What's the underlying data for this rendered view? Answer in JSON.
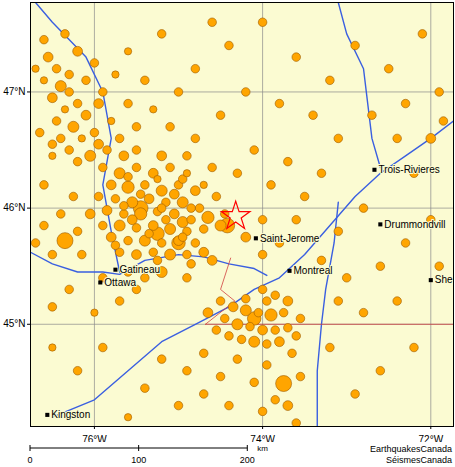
{
  "chart_data": {
    "type": "map",
    "xlim": [
      -76.76,
      -71.73
    ],
    "ylim": [
      44.12,
      47.77
    ],
    "xticks": [
      {
        "value": -76,
        "label": "76°W"
      },
      {
        "value": -74,
        "label": "74°W"
      },
      {
        "value": -72,
        "label": "72°W"
      }
    ],
    "yticks": [
      {
        "value": 45,
        "label": "45°N"
      },
      {
        "value": 46,
        "label": "46°N"
      },
      {
        "value": 47,
        "label": "47°N"
      }
    ],
    "grid": true,
    "color": "#ffa500",
    "events": [
      [
        -76.6,
        47.45,
        2
      ],
      [
        -76.55,
        47.3,
        2.5
      ],
      [
        -76.45,
        47.2,
        2
      ],
      [
        -76.6,
        47.1,
        1.5
      ],
      [
        -76.4,
        47.05,
        3
      ],
      [
        -76.3,
        47.0,
        2
      ],
      [
        -76.5,
        46.95,
        2.5
      ],
      [
        -76.2,
        46.9,
        2
      ],
      [
        -76.35,
        46.85,
        1.5
      ],
      [
        -76.1,
        46.8,
        2.5
      ],
      [
        -76.45,
        46.75,
        2
      ],
      [
        -76.25,
        46.7,
        3
      ],
      [
        -76.0,
        46.65,
        2
      ],
      [
        -76.15,
        46.6,
        1.5
      ],
      [
        -76.4,
        46.6,
        2
      ],
      [
        -75.95,
        46.55,
        2.5
      ],
      [
        -76.3,
        46.5,
        2
      ],
      [
        -76.05,
        46.45,
        3
      ],
      [
        -75.85,
        46.5,
        2
      ],
      [
        -76.5,
        46.45,
        1.5
      ],
      [
        -76.2,
        46.4,
        2
      ],
      [
        -75.7,
        46.6,
        2
      ],
      [
        -75.8,
        46.75,
        1.5
      ],
      [
        -75.6,
        46.9,
        2
      ],
      [
        -75.9,
        47.0,
        2
      ],
      [
        -75.75,
        47.15,
        1.5
      ],
      [
        -76.0,
        47.25,
        2
      ],
      [
        -76.2,
        47.35,
        2.5
      ],
      [
        -76.35,
        47.5,
        2
      ],
      [
        -75.6,
        47.35,
        1.5
      ],
      [
        -75.4,
        47.1,
        2
      ],
      [
        -75.3,
        46.85,
        1.5
      ],
      [
        -75.5,
        46.7,
        2
      ],
      [
        -76.65,
        46.65,
        2
      ],
      [
        -76.7,
        47.2,
        1.5
      ],
      [
        -76.1,
        47.1,
        2
      ],
      [
        -75.95,
        46.9,
        2.5
      ],
      [
        -76.3,
        47.15,
        2
      ],
      [
        -76.5,
        46.55,
        2
      ],
      [
        -75.65,
        46.45,
        2.5
      ],
      [
        -75.9,
        46.35,
        2
      ],
      [
        -75.7,
        46.3,
        3
      ],
      [
        -75.5,
        46.35,
        2
      ],
      [
        -75.3,
        46.3,
        2.5
      ],
      [
        -75.1,
        46.35,
        2
      ],
      [
        -74.9,
        46.3,
        1.5
      ],
      [
        -75.8,
        46.2,
        2.5
      ],
      [
        -75.6,
        46.18,
        3.5
      ],
      [
        -75.4,
        46.2,
        2
      ],
      [
        -75.2,
        46.15,
        3
      ],
      [
        -75.0,
        46.2,
        2
      ],
      [
        -74.8,
        46.15,
        2.5
      ],
      [
        -75.95,
        46.1,
        2
      ],
      [
        -75.75,
        46.08,
        2
      ],
      [
        -75.55,
        46.05,
        3
      ],
      [
        -75.35,
        46.08,
        2.5
      ],
      [
        -75.15,
        46.05,
        2
      ],
      [
        -74.95,
        46.05,
        3
      ],
      [
        -74.75,
        46.0,
        2
      ],
      [
        -75.85,
        45.98,
        2.5
      ],
      [
        -75.65,
        45.95,
        2
      ],
      [
        -75.45,
        45.95,
        3.5
      ],
      [
        -75.25,
        45.97,
        2
      ],
      [
        -75.05,
        45.95,
        2.5
      ],
      [
        -74.85,
        45.9,
        2
      ],
      [
        -74.65,
        45.92,
        3.5
      ],
      [
        -75.9,
        45.85,
        2
      ],
      [
        -75.7,
        45.85,
        3
      ],
      [
        -75.5,
        45.83,
        2
      ],
      [
        -75.3,
        45.85,
        2.5
      ],
      [
        -75.1,
        45.82,
        3
      ],
      [
        -74.9,
        45.8,
        2
      ],
      [
        -74.7,
        45.82,
        2
      ],
      [
        -75.8,
        45.75,
        2.5
      ],
      [
        -75.6,
        45.72,
        2
      ],
      [
        -75.4,
        45.72,
        3
      ],
      [
        -75.2,
        45.7,
        2
      ],
      [
        -75.0,
        45.72,
        2.5
      ],
      [
        -74.8,
        45.7,
        2
      ],
      [
        -75.7,
        45.62,
        2
      ],
      [
        -75.5,
        45.6,
        2.5
      ],
      [
        -75.3,
        45.62,
        2
      ],
      [
        -75.1,
        45.6,
        3
      ],
      [
        -74.9,
        45.6,
        2
      ],
      [
        -74.7,
        45.62,
        2.5
      ],
      [
        -75.6,
        46.27,
        2
      ],
      [
        -75.25,
        46.25,
        1.5
      ],
      [
        -74.95,
        46.25,
        2
      ],
      [
        -75.45,
        46.12,
        2
      ],
      [
        -75.05,
        46.12,
        2.5
      ],
      [
        -75.65,
        46.02,
        2
      ],
      [
        -75.2,
        46.0,
        2
      ],
      [
        -74.85,
        46.0,
        2
      ],
      [
        -75.55,
        45.9,
        2.5
      ],
      [
        -75.15,
        45.9,
        2
      ],
      [
        -74.95,
        45.88,
        3
      ],
      [
        -75.35,
        45.78,
        2
      ],
      [
        -74.95,
        45.75,
        2
      ],
      [
        -75.75,
        45.68,
        2
      ],
      [
        -75.25,
        45.55,
        2
      ],
      [
        -74.85,
        45.52,
        2
      ],
      [
        -74.6,
        45.55,
        2.5
      ],
      [
        -74.5,
        45.85,
        3
      ],
      [
        -74.45,
        45.95,
        2
      ],
      [
        -74.55,
        46.1,
        2
      ],
      [
        -74.7,
        46.2,
        1.5
      ],
      [
        -74.6,
        46.35,
        2
      ],
      [
        -74.9,
        46.45,
        2
      ],
      [
        -75.2,
        46.45,
        2.5
      ],
      [
        -75.5,
        46.5,
        2
      ],
      [
        -75.45,
        46.0,
        4.5
      ],
      [
        -75.0,
        45.7,
        4
      ],
      [
        -74.42,
        45.85,
        4.5
      ],
      [
        -75.25,
        45.78,
        4
      ],
      [
        -76.35,
        45.72,
        5
      ],
      [
        -76.6,
        45.85,
        2
      ],
      [
        -76.5,
        45.6,
        2
      ],
      [
        -76.2,
        45.8,
        2
      ],
      [
        -76.7,
        45.7,
        2
      ],
      [
        -76.4,
        45.95,
        2
      ],
      [
        -76.15,
        45.6,
        2
      ],
      [
        -76.05,
        45.95,
        2.5
      ],
      [
        -76.25,
        46.1,
        2
      ],
      [
        -76.6,
        46.2,
        2
      ],
      [
        -75.9,
        45.4,
        2
      ],
      [
        -75.6,
        45.45,
        2
      ],
      [
        -75.4,
        45.4,
        2
      ],
      [
        -75.2,
        45.45,
        3
      ],
      [
        -74.9,
        45.4,
        2
      ],
      [
        -75.5,
        45.3,
        2
      ],
      [
        -75.7,
        45.2,
        2
      ],
      [
        -76.0,
        45.1,
        1.5
      ],
      [
        -76.3,
        45.3,
        2
      ],
      [
        -76.5,
        45.15,
        2
      ],
      [
        -74.5,
        45.2,
        2
      ],
      [
        -74.35,
        45.15,
        2.5
      ],
      [
        -74.2,
        45.12,
        3
      ],
      [
        -74.05,
        45.1,
        2
      ],
      [
        -73.9,
        45.08,
        3.5
      ],
      [
        -73.75,
        45.1,
        2
      ],
      [
        -74.45,
        45.05,
        2
      ],
      [
        -74.3,
        45.0,
        3
      ],
      [
        -74.15,
        44.98,
        2
      ],
      [
        -74.0,
        44.95,
        2.5
      ],
      [
        -73.85,
        44.95,
        2
      ],
      [
        -73.7,
        44.97,
        2
      ],
      [
        -74.4,
        44.9,
        2
      ],
      [
        -74.25,
        44.87,
        2
      ],
      [
        -74.1,
        44.85,
        3
      ],
      [
        -73.95,
        44.83,
        2
      ],
      [
        -73.8,
        44.85,
        2.5
      ],
      [
        -73.6,
        44.9,
        2
      ],
      [
        -74.2,
        45.22,
        2
      ],
      [
        -73.95,
        45.2,
        2
      ],
      [
        -73.7,
        45.2,
        2.5
      ],
      [
        -74.55,
        44.95,
        2
      ],
      [
        -74.0,
        45.3,
        2
      ],
      [
        -73.85,
        45.25,
        2
      ],
      [
        -73.55,
        45.05,
        2
      ],
      [
        -74.65,
        45.1,
        2.5
      ],
      [
        -74.1,
        45.05,
        4
      ],
      [
        -73.65,
        44.75,
        2
      ],
      [
        -75.2,
        44.7,
        2
      ],
      [
        -74.9,
        44.6,
        2
      ],
      [
        -74.7,
        44.75,
        2
      ],
      [
        -74.5,
        44.55,
        2
      ],
      [
        -74.3,
        44.7,
        2
      ],
      [
        -74.1,
        44.5,
        2
      ],
      [
        -73.95,
        44.65,
        2
      ],
      [
        -73.75,
        44.49,
        5
      ],
      [
        -73.85,
        44.35,
        2
      ],
      [
        -74.0,
        44.25,
        2
      ],
      [
        -74.4,
        44.3,
        2
      ],
      [
        -74.7,
        44.4,
        2
      ],
      [
        -75.0,
        44.3,
        2
      ],
      [
        -75.4,
        44.45,
        2
      ],
      [
        -75.6,
        44.2,
        1.5
      ],
      [
        -73.55,
        44.55,
        2
      ],
      [
        -73.7,
        44.3,
        2.5
      ],
      [
        -73.6,
        44.15,
        2
      ],
      [
        -76.2,
        44.6,
        2
      ],
      [
        -75.9,
        44.8,
        2
      ],
      [
        -76.5,
        44.8,
        1.5
      ],
      [
        -74.3,
        46.3,
        2
      ],
      [
        -74.1,
        46.5,
        2
      ],
      [
        -73.9,
        46.2,
        2
      ],
      [
        -73.7,
        46.4,
        2
      ],
      [
        -73.5,
        46.1,
        2
      ],
      [
        -73.3,
        46.3,
        2
      ],
      [
        -73.1,
        46.6,
        2
      ],
      [
        -73.4,
        46.8,
        2
      ],
      [
        -73.8,
        46.9,
        2
      ],
      [
        -74.2,
        47.0,
        2
      ],
      [
        -74.5,
        46.8,
        2
      ],
      [
        -74.8,
        47.2,
        2
      ],
      [
        -74.4,
        47.4,
        2
      ],
      [
        -74.0,
        47.6,
        2
      ],
      [
        -73.6,
        47.3,
        2
      ],
      [
        -73.2,
        47.1,
        2
      ],
      [
        -72.9,
        47.4,
        2
      ],
      [
        -72.5,
        47.2,
        2
      ],
      [
        -72.3,
        46.9,
        2
      ],
      [
        -72.1,
        47.5,
        2
      ],
      [
        -71.9,
        47.0,
        2
      ],
      [
        -72.7,
        46.8,
        2
      ],
      [
        -72.4,
        46.6,
        2
      ],
      [
        -72.0,
        46.6,
        2.5
      ],
      [
        -71.85,
        46.75,
        2
      ],
      [
        -72.2,
        46.3,
        2
      ],
      [
        -72.8,
        46.0,
        2
      ],
      [
        -73.1,
        45.8,
        2
      ],
      [
        -73.3,
        45.55,
        2
      ],
      [
        -73.0,
        45.4,
        2
      ],
      [
        -72.6,
        45.5,
        2
      ],
      [
        -72.3,
        45.7,
        2
      ],
      [
        -72.0,
        45.9,
        2
      ],
      [
        -71.9,
        45.5,
        2
      ],
      [
        -72.4,
        45.2,
        2
      ],
      [
        -72.8,
        45.1,
        2
      ],
      [
        -73.1,
        45.2,
        2
      ],
      [
        -72.2,
        44.8,
        2
      ],
      [
        -72.6,
        44.6,
        2
      ],
      [
        -72.9,
        44.4,
        2
      ],
      [
        -73.2,
        44.8,
        2
      ],
      [
        -74.0,
        45.6,
        2
      ],
      [
        -73.8,
        45.7,
        2
      ],
      [
        -73.6,
        45.9,
        2
      ],
      [
        -74.2,
        45.75,
        2.5
      ],
      [
        -74.0,
        45.9,
        2
      ],
      [
        -74.8,
        46.6,
        2
      ],
      [
        -75.1,
        46.7,
        2
      ],
      [
        -74.6,
        47.6,
        2
      ],
      [
        -75.2,
        47.5,
        2
      ],
      [
        -75.0,
        47.0,
        2
      ]
    ],
    "epicenter": {
      "lon": -74.32,
      "lat": 45.93,
      "color": "#ff0000",
      "marker": "star"
    },
    "cities": [
      {
        "label": "Trois-Rivieres",
        "lon": -72.67,
        "lat": 46.33
      },
      {
        "label": "Drummondvill",
        "lon": -72.6,
        "lat": 45.86
      },
      {
        "label": "Saint-Jerome",
        "lon": -74.08,
        "lat": 45.74
      },
      {
        "label": "Montreal",
        "lon": -73.68,
        "lat": 45.46
      },
      {
        "label": "Gatineau",
        "lon": -75.75,
        "lat": 45.47
      },
      {
        "label": "Ottawa",
        "lon": -75.93,
        "lat": 45.36
      },
      {
        "label": "Kingston",
        "lon": -76.56,
        "lat": 44.22
      },
      {
        "label": "She",
        "lon": -72.0,
        "lat": 45.38
      }
    ],
    "rivers": [
      [
        [
          -76.76,
          45.62
        ],
        [
          -76.5,
          45.52
        ],
        [
          -76.2,
          45.45
        ],
        [
          -75.9,
          45.45
        ],
        [
          -75.7,
          45.43
        ],
        [
          -75.4,
          45.55
        ],
        [
          -75.0,
          45.6
        ],
        [
          -74.7,
          45.58
        ],
        [
          -74.4,
          45.52
        ],
        [
          -74.1,
          45.48
        ],
        [
          -73.95,
          45.42
        ]
      ],
      [
        [
          -76.5,
          44.2
        ],
        [
          -76.0,
          44.35
        ],
        [
          -75.6,
          44.6
        ],
        [
          -75.2,
          44.85
        ],
        [
          -74.8,
          45.0
        ],
        [
          -74.4,
          45.15
        ],
        [
          -74.1,
          45.3
        ],
        [
          -73.8,
          45.4
        ],
        [
          -73.5,
          45.6
        ],
        [
          -73.2,
          45.85
        ],
        [
          -72.9,
          46.1
        ],
        [
          -72.6,
          46.3
        ],
        [
          -72.3,
          46.45
        ],
        [
          -72.0,
          46.6
        ],
        [
          -71.73,
          46.75
        ]
      ],
      [
        [
          -73.35,
          44.12
        ],
        [
          -73.35,
          44.6
        ],
        [
          -73.3,
          45.0
        ],
        [
          -73.25,
          45.3
        ],
        [
          -73.15,
          45.7
        ],
        [
          -73.1,
          46.05
        ]
      ],
      [
        [
          -72.6,
          46.35
        ],
        [
          -72.7,
          46.6
        ],
        [
          -72.75,
          46.9
        ],
        [
          -72.8,
          47.2
        ],
        [
          -73.0,
          47.5
        ],
        [
          -73.1,
          47.77
        ]
      ],
      [
        [
          -75.7,
          45.45
        ],
        [
          -75.8,
          45.8
        ],
        [
          -75.9,
          46.2
        ],
        [
          -75.8,
          46.6
        ],
        [
          -75.9,
          47.0
        ],
        [
          -76.1,
          47.3
        ],
        [
          -76.5,
          47.6
        ],
        [
          -76.7,
          47.77
        ]
      ]
    ],
    "borders": [
      [
        [
          -74.38,
          45.57
        ],
        [
          -74.5,
          45.3
        ],
        [
          -74.33,
          45.2
        ],
        [
          -74.68,
          45.0
        ]
      ],
      [
        [
          -74.68,
          45.0
        ],
        [
          -71.73,
          45.0
        ]
      ]
    ],
    "scale_bar": {
      "ticks": [
        0,
        100,
        200
      ],
      "unit": "km"
    },
    "credits": [
      "EarthquakesCanada",
      "SéismesCanada"
    ]
  }
}
